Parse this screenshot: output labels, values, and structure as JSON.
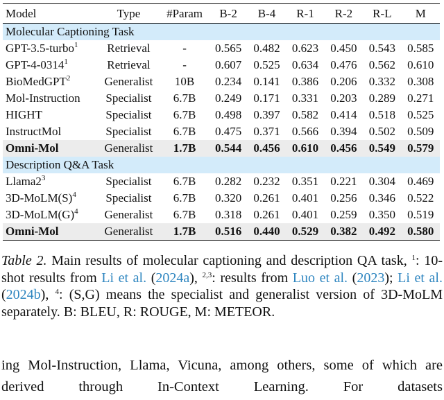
{
  "table": {
    "columns": [
      "Model",
      "Type",
      "#Param",
      "B-2",
      "B-4",
      "R-1",
      "R-2",
      "R-L",
      "M"
    ],
    "sections": [
      {
        "title": "Molecular Captioning Task",
        "rows": [
          {
            "model": "GPT-3.5-turbo",
            "sup": "1",
            "type": "Retrieval",
            "param": "-",
            "values": [
              "0.565",
              "0.482",
              "0.623",
              "0.450",
              "0.543",
              "0.585"
            ]
          },
          {
            "model": "GPT-4-0314",
            "sup": "1",
            "type": "Retrieval",
            "param": "-",
            "values": [
              "0.607",
              "0.525",
              "0.634",
              "0.476",
              "0.562",
              "0.610"
            ]
          },
          {
            "model": "BioMedGPT",
            "sup": "2",
            "type": "Generalist",
            "param": "10B",
            "values": [
              "0.234",
              "0.141",
              "0.386",
              "0.206",
              "0.332",
              "0.308"
            ]
          },
          {
            "model": "Mol-Instruction",
            "type": "Specialist",
            "param": "6.7B",
            "values": [
              "0.249",
              "0.171",
              "0.331",
              "0.203",
              "0.289",
              "0.271"
            ]
          },
          {
            "model": "HIGHT",
            "type": "Specialist",
            "param": "6.7B",
            "values": [
              "0.498",
              "0.397",
              "0.582",
              "0.414",
              "0.518",
              "0.525"
            ]
          },
          {
            "model": "InstructMol",
            "type": "Specialist",
            "param": "6.7B",
            "values": [
              "0.475",
              "0.371",
              "0.566",
              "0.394",
              "0.502",
              "0.509"
            ]
          },
          {
            "model": "Omni-Mol",
            "type": "Generalist",
            "param": "1.7B",
            "values": [
              "0.544",
              "0.456",
              "0.610",
              "0.456",
              "0.549",
              "0.579"
            ],
            "highlight": true
          }
        ]
      },
      {
        "title": "Description Q&A Task",
        "rows": [
          {
            "model": "Llama2",
            "sup": "3",
            "type": "Specialist",
            "param": "6.7B",
            "values": [
              "0.282",
              "0.232",
              "0.351",
              "0.221",
              "0.304",
              "0.469"
            ]
          },
          {
            "model": "3D-MoLM(S)",
            "sup": "4",
            "type": "Specialist",
            "param": "6.7B",
            "values": [
              "0.320",
              "0.261",
              "0.401",
              "0.256",
              "0.346",
              "0.522"
            ]
          },
          {
            "model": "3D-MoLM(G)",
            "sup": "4",
            "type": "Generalist",
            "param": "6.7B",
            "values": [
              "0.318",
              "0.261",
              "0.401",
              "0.259",
              "0.350",
              "0.519"
            ]
          },
          {
            "model": "Omni-Mol",
            "type": "Generalist",
            "param": "1.7B",
            "values": [
              "0.516",
              "0.440",
              "0.529",
              "0.382",
              "0.492",
              "0.580"
            ],
            "highlight": true
          }
        ]
      }
    ]
  },
  "caption": {
    "label": "Table 2.",
    "parts": [
      " Main results of molecular captioning and description QA task, ",
      "1",
      ": 10-shot results from ",
      "Li et al.",
      " (",
      "2024a",
      "), ",
      "2,3",
      ": results from ",
      "Luo et al.",
      " (",
      "2023",
      "); ",
      "Li et al.",
      " (",
      "2024b",
      "), ",
      "4",
      ": (S,G) means the specialist and generalist version of 3D-MoLM separately. B: BLEU, R: ROUGE, M: METEOR."
    ]
  },
  "body": "ing Mol-Instruction, Llama, Vicuna, among others, some of which are derived through In-Context Learning. For datasets"
}
